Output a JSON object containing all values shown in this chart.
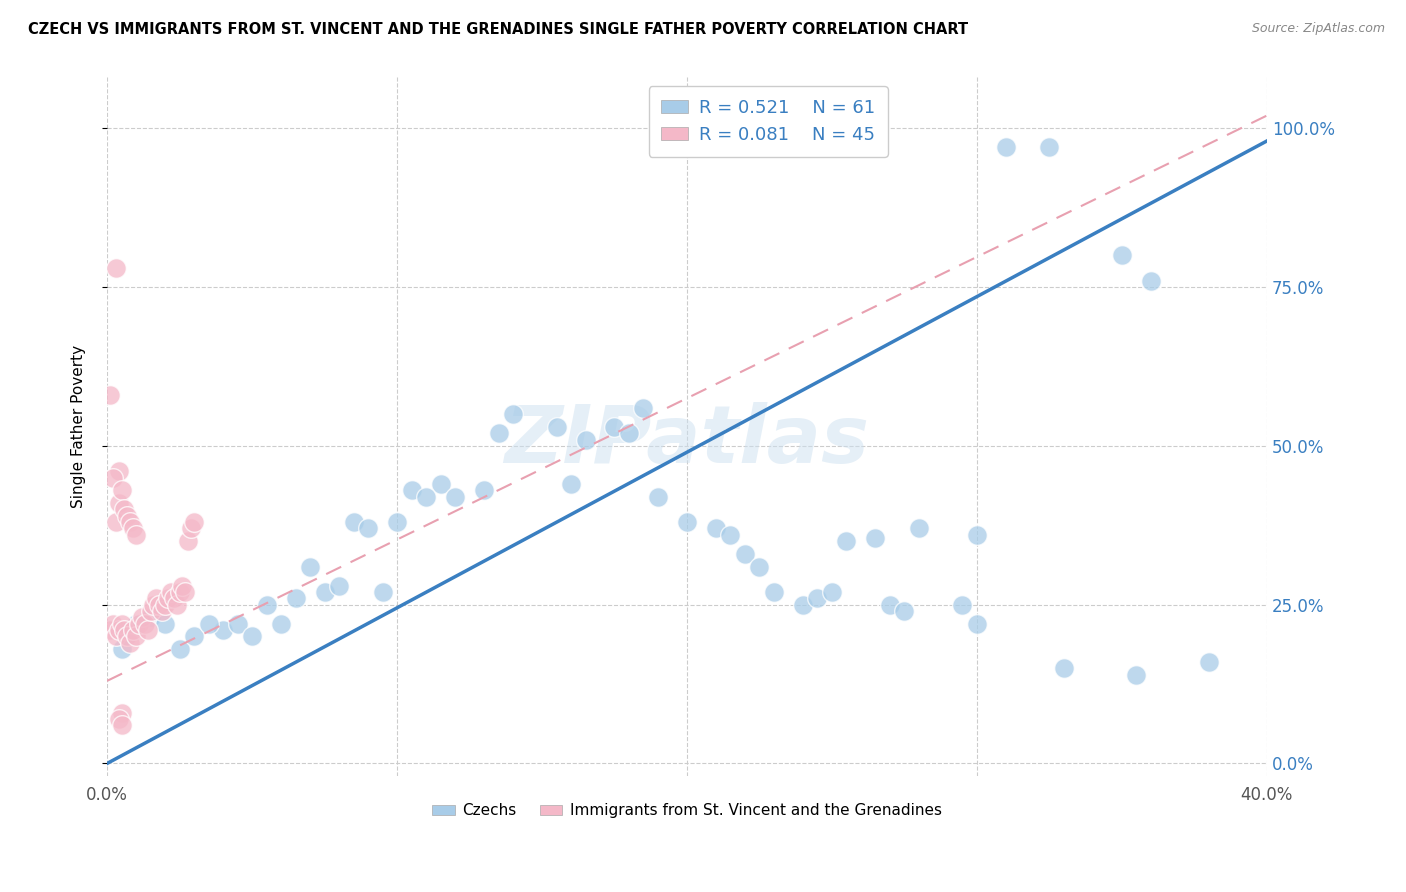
{
  "title": "CZECH VS IMMIGRANTS FROM ST. VINCENT AND THE GRENADINES SINGLE FATHER POVERTY CORRELATION CHART",
  "source": "Source: ZipAtlas.com",
  "ylabel": "Single Father Poverty",
  "xlim": [
    0.0,
    0.4
  ],
  "ylim": [
    -0.02,
    1.08
  ],
  "ytick_labels": [
    "0.0%",
    "25.0%",
    "50.0%",
    "75.0%",
    "100.0%"
  ],
  "ytick_values": [
    0.0,
    0.25,
    0.5,
    0.75,
    1.0
  ],
  "xtick_labels": [
    "0.0%",
    "",
    "",
    "",
    "40.0%"
  ],
  "xtick_values": [
    0.0,
    0.1,
    0.2,
    0.3,
    0.4
  ],
  "blue_color": "#a8cce8",
  "pink_color": "#f4b8c8",
  "blue_line_color": "#3a7fc1",
  "pink_line_color": "#e8a0b0",
  "blue_line_x0": 0.0,
  "blue_line_y0": 0.0,
  "blue_line_x1": 0.4,
  "blue_line_y1": 0.98,
  "pink_line_x0": 0.0,
  "pink_line_y0": 0.13,
  "pink_line_x1": 0.4,
  "pink_line_y1": 1.02,
  "watermark": "ZIPatlas",
  "blue_points_x": [
    0.31,
    0.325,
    0.28,
    0.3,
    0.255,
    0.265,
    0.21,
    0.215,
    0.175,
    0.18,
    0.185,
    0.155,
    0.16,
    0.165,
    0.13,
    0.135,
    0.14,
    0.115,
    0.12,
    0.1,
    0.105,
    0.11,
    0.085,
    0.09,
    0.095,
    0.07,
    0.075,
    0.08,
    0.055,
    0.06,
    0.065,
    0.04,
    0.045,
    0.05,
    0.025,
    0.03,
    0.035,
    0.01,
    0.015,
    0.02,
    0.005,
    0.006,
    0.007,
    0.008,
    0.19,
    0.2,
    0.22,
    0.225,
    0.23,
    0.24,
    0.245,
    0.25,
    0.27,
    0.275,
    0.295,
    0.3,
    0.33,
    0.355,
    0.35,
    0.36,
    0.38
  ],
  "blue_points_y": [
    0.97,
    0.97,
    0.37,
    0.36,
    0.35,
    0.355,
    0.37,
    0.36,
    0.53,
    0.52,
    0.56,
    0.53,
    0.44,
    0.51,
    0.43,
    0.52,
    0.55,
    0.44,
    0.42,
    0.38,
    0.43,
    0.42,
    0.38,
    0.37,
    0.27,
    0.31,
    0.27,
    0.28,
    0.25,
    0.22,
    0.26,
    0.21,
    0.22,
    0.2,
    0.18,
    0.2,
    0.22,
    0.22,
    0.23,
    0.22,
    0.18,
    0.21,
    0.2,
    0.21,
    0.42,
    0.38,
    0.33,
    0.31,
    0.27,
    0.25,
    0.26,
    0.27,
    0.25,
    0.24,
    0.25,
    0.22,
    0.15,
    0.14,
    0.8,
    0.76,
    0.16
  ],
  "pink_points_x": [
    0.001,
    0.002,
    0.003,
    0.004,
    0.005,
    0.006,
    0.007,
    0.008,
    0.009,
    0.01,
    0.011,
    0.012,
    0.013,
    0.014,
    0.015,
    0.016,
    0.017,
    0.018,
    0.019,
    0.02,
    0.021,
    0.022,
    0.023,
    0.024,
    0.025,
    0.026,
    0.027,
    0.028,
    0.029,
    0.03,
    0.003,
    0.004,
    0.005,
    0.004,
    0.005,
    0.001,
    0.002,
    0.003,
    0.004,
    0.005,
    0.006,
    0.007,
    0.008,
    0.009,
    0.01
  ],
  "pink_points_y": [
    0.21,
    0.22,
    0.2,
    0.21,
    0.22,
    0.21,
    0.2,
    0.19,
    0.21,
    0.2,
    0.22,
    0.23,
    0.22,
    0.21,
    0.24,
    0.25,
    0.26,
    0.25,
    0.24,
    0.25,
    0.26,
    0.27,
    0.26,
    0.25,
    0.27,
    0.28,
    0.27,
    0.35,
    0.37,
    0.38,
    0.78,
    0.46,
    0.08,
    0.07,
    0.06,
    0.58,
    0.45,
    0.38,
    0.41,
    0.43,
    0.4,
    0.39,
    0.38,
    0.37,
    0.36
  ],
  "background_color": "#ffffff",
  "grid_color": "#cccccc"
}
